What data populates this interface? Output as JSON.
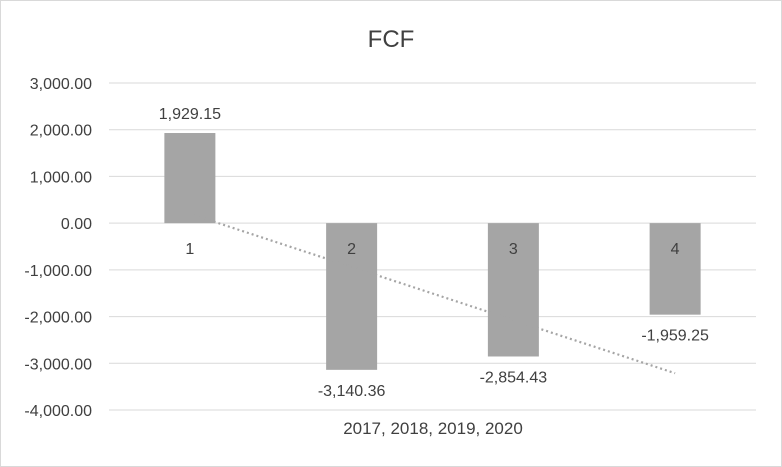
{
  "chart_data": {
    "type": "bar",
    "title": "FCF",
    "xlabel": "2017, 2018, 2019, 2020",
    "ylabel": "",
    "categories": [
      "1",
      "2",
      "3",
      "4"
    ],
    "values": [
      1929.15,
      -3140.36,
      -2854.43,
      -1959.25
    ],
    "data_labels": [
      "1,929.15",
      "-3,140.36",
      "-2,854.43",
      "-1,959.25"
    ],
    "ylim": [
      -4000,
      3000
    ],
    "yticks": [
      3000,
      2000,
      1000,
      0,
      -1000,
      -2000,
      -3000,
      -4000
    ],
    "ytick_labels": [
      "3,000.00",
      "2,000.00",
      "1,000.00",
      "0.00",
      "-1,000.00",
      "-2,000.00",
      "-3,000.00",
      "-4,000.00"
    ],
    "trendline": "linear",
    "grid": true,
    "legend": "none",
    "colors": {
      "bar": "#a5a5a5",
      "trendline": "#a5a5a5",
      "grid": "#d9d9d9",
      "text": "#404040",
      "title": "#404040"
    }
  }
}
